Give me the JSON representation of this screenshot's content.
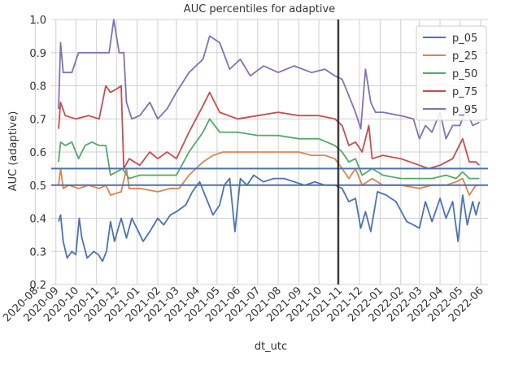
{
  "chart_data": {
    "type": "line",
    "title": "AUC percentiles for adaptive",
    "xlabel": "dt_utc",
    "ylabel": "AUC (adaptive)",
    "x_ticks": [
      "2020-08",
      "2020-09",
      "2020-10",
      "2020-11",
      "2020-12",
      "2021-01",
      "2021-02",
      "2021-03",
      "2021-04",
      "2021-05",
      "2021-06",
      "2021-07",
      "2021-08",
      "2021-09",
      "2021-10",
      "2021-11",
      "2021-12",
      "2022-01",
      "2022-02",
      "2022-03",
      "2022-04",
      "2022-05",
      "2022-06"
    ],
    "y_ticks": [
      "0.2",
      "0.3",
      "0.4",
      "0.5",
      "0.6",
      "0.7",
      "0.8",
      "0.9",
      "1.0"
    ],
    "xlim": [
      "2020-08-25",
      "2022-06-12"
    ],
    "ylim": [
      0.2,
      1.0
    ],
    "grid": true,
    "legend_position": "top-right",
    "reference_lines": {
      "horizontal": [
        0.55,
        0.5
      ],
      "vertical": [
        "2021-10-30"
      ]
    },
    "series": [
      {
        "name": "p_05",
        "color": "#4c72b0",
        "points": [
          [
            "2020-09-05",
            0.39
          ],
          [
            "2020-09-08",
            0.41
          ],
          [
            "2020-09-12",
            0.33
          ],
          [
            "2020-09-18",
            0.28
          ],
          [
            "2020-09-25",
            0.3
          ],
          [
            "2020-10-01",
            0.29
          ],
          [
            "2020-10-06",
            0.4
          ],
          [
            "2020-10-10",
            0.34
          ],
          [
            "2020-10-18",
            0.28
          ],
          [
            "2020-10-28",
            0.3
          ],
          [
            "2020-11-04",
            0.29
          ],
          [
            "2020-11-10",
            0.27
          ],
          [
            "2020-11-16",
            0.3
          ],
          [
            "2020-11-22",
            0.39
          ],
          [
            "2020-11-28",
            0.33
          ],
          [
            "2020-12-08",
            0.4
          ],
          [
            "2020-12-16",
            0.34
          ],
          [
            "2020-12-24",
            0.4
          ],
          [
            "2021-01-03",
            0.36
          ],
          [
            "2021-01-10",
            0.33
          ],
          [
            "2021-01-20",
            0.36
          ],
          [
            "2021-02-01",
            0.4
          ],
          [
            "2021-02-10",
            0.38
          ],
          [
            "2021-02-20",
            0.41
          ],
          [
            "2021-03-01",
            0.42
          ],
          [
            "2021-03-15",
            0.44
          ],
          [
            "2021-03-25",
            0.48
          ],
          [
            "2021-04-05",
            0.51
          ],
          [
            "2021-04-15",
            0.46
          ],
          [
            "2021-04-25",
            0.41
          ],
          [
            "2021-05-05",
            0.44
          ],
          [
            "2021-05-12",
            0.5
          ],
          [
            "2021-05-20",
            0.52
          ],
          [
            "2021-05-28",
            0.36
          ],
          [
            "2021-06-05",
            0.52
          ],
          [
            "2021-06-15",
            0.5
          ],
          [
            "2021-06-25",
            0.53
          ],
          [
            "2021-07-10",
            0.51
          ],
          [
            "2021-07-25",
            0.52
          ],
          [
            "2021-08-10",
            0.52
          ],
          [
            "2021-08-25",
            0.51
          ],
          [
            "2021-09-10",
            0.5
          ],
          [
            "2021-09-25",
            0.51
          ],
          [
            "2021-10-10",
            0.5
          ],
          [
            "2021-10-25",
            0.5
          ],
          [
            "2021-11-05",
            0.49
          ],
          [
            "2021-11-15",
            0.45
          ],
          [
            "2021-11-25",
            0.46
          ],
          [
            "2021-12-03",
            0.37
          ],
          [
            "2021-12-10",
            0.42
          ],
          [
            "2021-12-18",
            0.36
          ],
          [
            "2021-12-28",
            0.48
          ],
          [
            "2022-01-10",
            0.47
          ],
          [
            "2022-01-25",
            0.45
          ],
          [
            "2022-02-10",
            0.39
          ],
          [
            "2022-02-20",
            0.38
          ],
          [
            "2022-03-01",
            0.37
          ],
          [
            "2022-03-10",
            0.45
          ],
          [
            "2022-03-20",
            0.39
          ],
          [
            "2022-04-01",
            0.46
          ],
          [
            "2022-04-10",
            0.4
          ],
          [
            "2022-04-20",
            0.45
          ],
          [
            "2022-04-28",
            0.33
          ],
          [
            "2022-05-05",
            0.47
          ],
          [
            "2022-05-12",
            0.38
          ],
          [
            "2022-05-20",
            0.45
          ],
          [
            "2022-05-25",
            0.41
          ],
          [
            "2022-05-30",
            0.45
          ]
        ]
      },
      {
        "name": "p_25",
        "color": "#dd8452",
        "points": [
          [
            "2020-09-05",
            0.5
          ],
          [
            "2020-09-08",
            0.55
          ],
          [
            "2020-09-12",
            0.49
          ],
          [
            "2020-09-20",
            0.5
          ],
          [
            "2020-10-05",
            0.49
          ],
          [
            "2020-10-20",
            0.5
          ],
          [
            "2020-11-05",
            0.49
          ],
          [
            "2020-11-15",
            0.5
          ],
          [
            "2020-11-22",
            0.47
          ],
          [
            "2020-12-08",
            0.48
          ],
          [
            "2020-12-16",
            0.55
          ],
          [
            "2020-12-20",
            0.49
          ],
          [
            "2021-01-05",
            0.49
          ],
          [
            "2021-02-01",
            0.48
          ],
          [
            "2021-02-20",
            0.49
          ],
          [
            "2021-03-05",
            0.49
          ],
          [
            "2021-03-20",
            0.53
          ],
          [
            "2021-04-10",
            0.57
          ],
          [
            "2021-04-25",
            0.59
          ],
          [
            "2021-05-10",
            0.6
          ],
          [
            "2021-06-01",
            0.6
          ],
          [
            "2021-07-01",
            0.6
          ],
          [
            "2021-08-01",
            0.6
          ],
          [
            "2021-09-01",
            0.6
          ],
          [
            "2021-09-20",
            0.59
          ],
          [
            "2021-10-10",
            0.59
          ],
          [
            "2021-10-25",
            0.58
          ],
          [
            "2021-11-05",
            0.55
          ],
          [
            "2021-11-15",
            0.52
          ],
          [
            "2021-11-25",
            0.55
          ],
          [
            "2021-12-05",
            0.5
          ],
          [
            "2021-12-20",
            0.52
          ],
          [
            "2022-01-05",
            0.5
          ],
          [
            "2022-02-01",
            0.5
          ],
          [
            "2022-03-01",
            0.49
          ],
          [
            "2022-03-20",
            0.5
          ],
          [
            "2022-04-10",
            0.5
          ],
          [
            "2022-04-25",
            0.51
          ],
          [
            "2022-05-05",
            0.52
          ],
          [
            "2022-05-15",
            0.47
          ],
          [
            "2022-05-25",
            0.5
          ],
          [
            "2022-05-30",
            0.5
          ]
        ]
      },
      {
        "name": "p_50",
        "color": "#55a868",
        "points": [
          [
            "2020-09-05",
            0.57
          ],
          [
            "2020-09-08",
            0.63
          ],
          [
            "2020-09-15",
            0.62
          ],
          [
            "2020-09-25",
            0.63
          ],
          [
            "2020-10-05",
            0.58
          ],
          [
            "2020-10-15",
            0.62
          ],
          [
            "2020-10-25",
            0.63
          ],
          [
            "2020-11-05",
            0.62
          ],
          [
            "2020-11-15",
            0.62
          ],
          [
            "2020-11-22",
            0.53
          ],
          [
            "2020-12-10",
            0.55
          ],
          [
            "2020-12-20",
            0.52
          ],
          [
            "2021-01-05",
            0.53
          ],
          [
            "2021-02-01",
            0.53
          ],
          [
            "2021-03-01",
            0.53
          ],
          [
            "2021-03-20",
            0.6
          ],
          [
            "2021-04-10",
            0.66
          ],
          [
            "2021-04-20",
            0.7
          ],
          [
            "2021-05-05",
            0.66
          ],
          [
            "2021-06-01",
            0.66
          ],
          [
            "2021-07-01",
            0.65
          ],
          [
            "2021-08-01",
            0.65
          ],
          [
            "2021-09-01",
            0.64
          ],
          [
            "2021-10-01",
            0.64
          ],
          [
            "2021-10-25",
            0.62
          ],
          [
            "2021-11-05",
            0.6
          ],
          [
            "2021-11-15",
            0.57
          ],
          [
            "2021-11-25",
            0.58
          ],
          [
            "2021-12-05",
            0.53
          ],
          [
            "2021-12-20",
            0.55
          ],
          [
            "2022-01-05",
            0.53
          ],
          [
            "2022-02-01",
            0.52
          ],
          [
            "2022-03-01",
            0.52
          ],
          [
            "2022-03-20",
            0.52
          ],
          [
            "2022-04-10",
            0.53
          ],
          [
            "2022-04-25",
            0.52
          ],
          [
            "2022-05-05",
            0.54
          ],
          [
            "2022-05-15",
            0.52
          ],
          [
            "2022-05-30",
            0.52
          ]
        ]
      },
      {
        "name": "p_75",
        "color": "#c44e52",
        "points": [
          [
            "2020-09-05",
            0.67
          ],
          [
            "2020-09-08",
            0.75
          ],
          [
            "2020-09-15",
            0.71
          ],
          [
            "2020-10-01",
            0.7
          ],
          [
            "2020-10-20",
            0.71
          ],
          [
            "2020-11-05",
            0.7
          ],
          [
            "2020-11-15",
            0.8
          ],
          [
            "2020-11-22",
            0.78
          ],
          [
            "2020-12-01",
            0.79
          ],
          [
            "2020-12-08",
            0.8
          ],
          [
            "2020-12-12",
            0.55
          ],
          [
            "2020-12-20",
            0.58
          ],
          [
            "2021-01-05",
            0.56
          ],
          [
            "2021-01-20",
            0.6
          ],
          [
            "2021-02-01",
            0.58
          ],
          [
            "2021-02-15",
            0.6
          ],
          [
            "2021-03-01",
            0.58
          ],
          [
            "2021-03-20",
            0.66
          ],
          [
            "2021-04-10",
            0.74
          ],
          [
            "2021-04-20",
            0.78
          ],
          [
            "2021-05-05",
            0.72
          ],
          [
            "2021-06-01",
            0.7
          ],
          [
            "2021-07-01",
            0.71
          ],
          [
            "2021-08-01",
            0.72
          ],
          [
            "2021-09-01",
            0.71
          ],
          [
            "2021-10-01",
            0.71
          ],
          [
            "2021-10-25",
            0.7
          ],
          [
            "2021-11-05",
            0.68
          ],
          [
            "2021-11-15",
            0.62
          ],
          [
            "2021-11-25",
            0.63
          ],
          [
            "2021-12-05",
            0.6
          ],
          [
            "2021-12-15",
            0.68
          ],
          [
            "2021-12-20",
            0.58
          ],
          [
            "2022-01-05",
            0.59
          ],
          [
            "2022-02-01",
            0.58
          ],
          [
            "2022-03-01",
            0.56
          ],
          [
            "2022-03-15",
            0.55
          ],
          [
            "2022-04-01",
            0.56
          ],
          [
            "2022-04-20",
            0.58
          ],
          [
            "2022-05-05",
            0.64
          ],
          [
            "2022-05-15",
            0.57
          ],
          [
            "2022-05-25",
            0.57
          ],
          [
            "2022-05-30",
            0.56
          ]
        ]
      },
      {
        "name": "p_95",
        "color": "#8172b2",
        "points": [
          [
            "2020-09-05",
            0.73
          ],
          [
            "2020-09-08",
            0.93
          ],
          [
            "2020-09-12",
            0.84
          ],
          [
            "2020-09-25",
            0.84
          ],
          [
            "2020-10-05",
            0.9
          ],
          [
            "2020-10-20",
            0.9
          ],
          [
            "2020-11-05",
            0.9
          ],
          [
            "2020-11-20",
            0.9
          ],
          [
            "2020-11-27",
            1.0
          ],
          [
            "2020-12-05",
            0.9
          ],
          [
            "2020-12-12",
            0.9
          ],
          [
            "2020-12-16",
            0.75
          ],
          [
            "2020-12-24",
            0.7
          ],
          [
            "2021-01-05",
            0.71
          ],
          [
            "2021-01-20",
            0.75
          ],
          [
            "2021-02-01",
            0.7
          ],
          [
            "2021-02-15",
            0.73
          ],
          [
            "2021-03-01",
            0.78
          ],
          [
            "2021-03-20",
            0.84
          ],
          [
            "2021-04-10",
            0.88
          ],
          [
            "2021-04-20",
            0.95
          ],
          [
            "2021-05-05",
            0.93
          ],
          [
            "2021-05-20",
            0.85
          ],
          [
            "2021-06-05",
            0.88
          ],
          [
            "2021-06-20",
            0.83
          ],
          [
            "2021-07-10",
            0.86
          ],
          [
            "2021-08-01",
            0.84
          ],
          [
            "2021-08-25",
            0.86
          ],
          [
            "2021-09-20",
            0.84
          ],
          [
            "2021-10-10",
            0.85
          ],
          [
            "2021-10-25",
            0.83
          ],
          [
            "2021-11-05",
            0.82
          ],
          [
            "2021-11-15",
            0.77
          ],
          [
            "2021-11-25",
            0.72
          ],
          [
            "2021-12-03",
            0.67
          ],
          [
            "2021-12-10",
            0.85
          ],
          [
            "2021-12-18",
            0.75
          ],
          [
            "2021-12-25",
            0.72
          ],
          [
            "2022-01-05",
            0.72
          ],
          [
            "2022-02-01",
            0.71
          ],
          [
            "2022-02-20",
            0.7
          ],
          [
            "2022-03-01",
            0.64
          ],
          [
            "2022-03-10",
            0.68
          ],
          [
            "2022-03-20",
            0.66
          ],
          [
            "2022-04-01",
            0.72
          ],
          [
            "2022-04-10",
            0.64
          ],
          [
            "2022-04-20",
            0.68
          ],
          [
            "2022-05-01",
            0.68
          ],
          [
            "2022-05-10",
            0.73
          ],
          [
            "2022-05-20",
            0.68
          ],
          [
            "2022-05-30",
            0.69
          ]
        ]
      }
    ]
  }
}
